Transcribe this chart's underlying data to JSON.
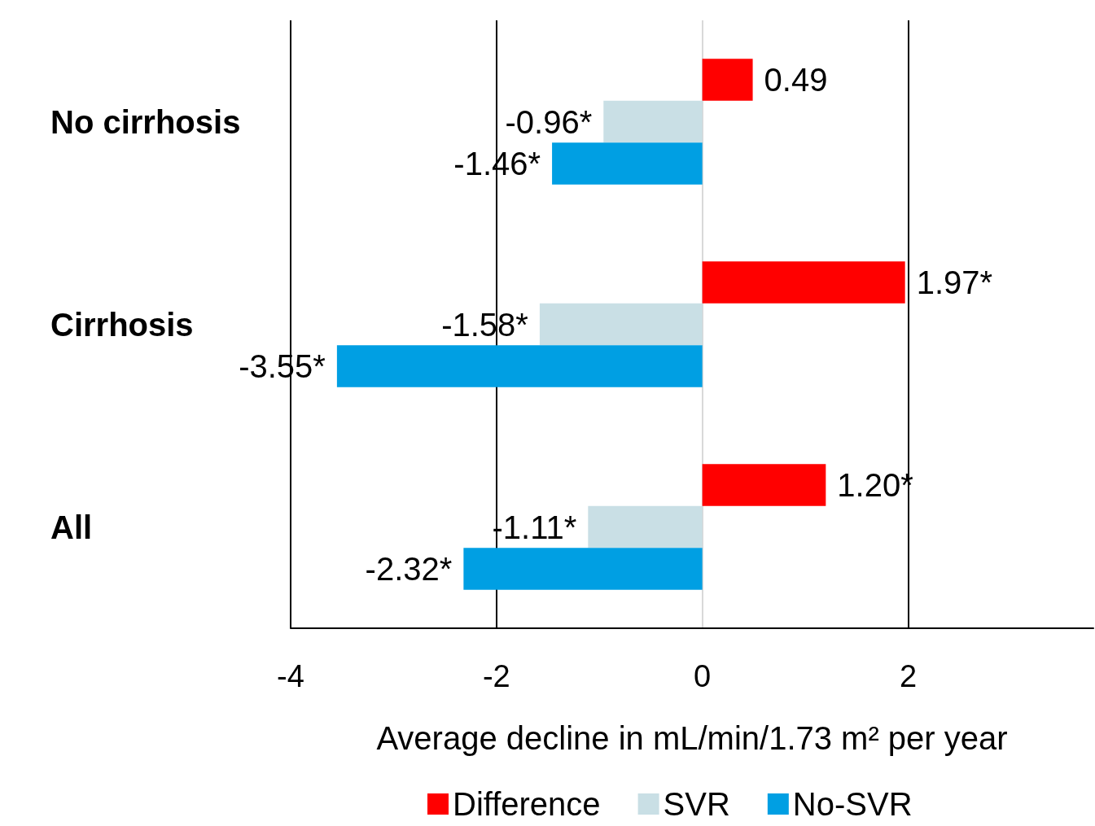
{
  "chart_data": {
    "type": "bar",
    "orientation": "horizontal",
    "xlabel": "Average decline in mL/min/1.73 m² per year",
    "categories": [
      "No cirrhosis",
      "Cirrhosis",
      "All"
    ],
    "series": [
      {
        "name": "Difference",
        "color": "#ff0000",
        "values": [
          0.49,
          1.97,
          1.2
        ],
        "value_labels": [
          "0.49",
          "1.97*",
          "1.20*"
        ]
      },
      {
        "name": "SVR",
        "color": "#c9dfe5",
        "values": [
          -0.96,
          -1.58,
          -1.11
        ],
        "value_labels": [
          "-0.96*",
          "-1.58*",
          "-1.11*"
        ]
      },
      {
        "name": "No-SVR",
        "color": "#009fe3",
        "values": [
          -1.46,
          -3.55,
          -2.32
        ],
        "value_labels": [
          "-1.46*",
          "-3.55*",
          "-2.32*"
        ]
      }
    ],
    "xlim": [
      -4,
      3.8
    ],
    "xticks": [
      -4,
      -2,
      0,
      2
    ],
    "grid": "x",
    "legend": "bottom"
  }
}
